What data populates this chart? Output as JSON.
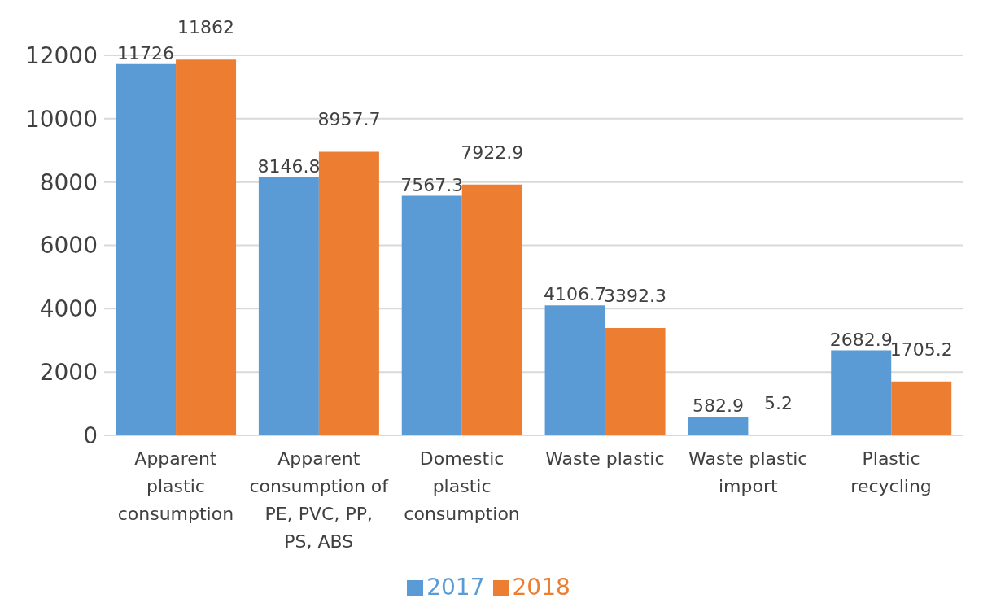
{
  "chart_data": {
    "type": "bar",
    "categories": [
      "Apparent plastic consumption",
      "Apparent consumption of PE, PVC, PP, PS, ABS",
      "Domestic plastic consumption",
      "Waste plastic",
      "Waste plastic import",
      "Plastic recycling"
    ],
    "series": [
      {
        "name": "2017",
        "color": "#5b9bd5",
        "values": [
          11726,
          8146.8,
          7567.3,
          4106.7,
          582.9,
          2682.9
        ]
      },
      {
        "name": "2018",
        "color": "#ed7d31",
        "values": [
          11862,
          8957.7,
          7922.9,
          3392.3,
          5.2,
          1705.2
        ]
      }
    ],
    "ylim": [
      0,
      12000
    ],
    "yticks": [
      0,
      2000,
      4000,
      6000,
      8000,
      10000,
      12000
    ],
    "grid": "y",
    "legend": "bottom",
    "data_labels": true
  }
}
